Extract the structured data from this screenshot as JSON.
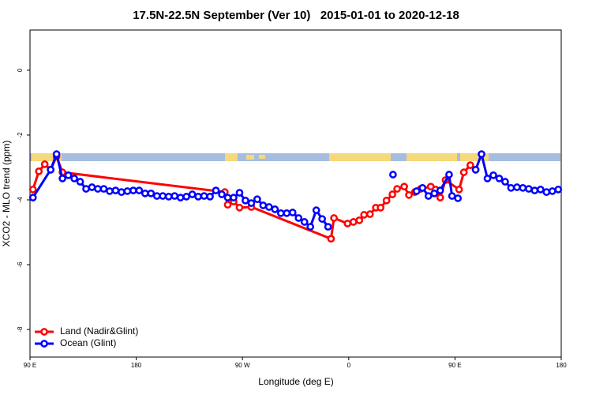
{
  "chart_data": {
    "type": "line",
    "title": "17.5N-22.5N September (Ver 10)   2015-01-01 to 2020-12-18",
    "x_label": "Longitude (deg E)",
    "y_label": "XCO2 - MLO trend (ppm)",
    "xlim": [
      90,
      540
    ],
    "xticks": [
      {
        "value": 90,
        "label": "90 E"
      },
      {
        "value": 180,
        "label": "180"
      },
      {
        "value": 270,
        "label": "90 W"
      },
      {
        "value": 360,
        "label": "0"
      },
      {
        "value": 450,
        "label": "90 E"
      },
      {
        "value": 540,
        "label": "180"
      }
    ],
    "ylim": [
      -8.85,
      1.24
    ],
    "yticks": [
      0,
      -2,
      -4,
      -6,
      -8
    ],
    "legend": "bottom-left",
    "series": [
      {
        "name": "Land (Nadir&Glint)",
        "color": "#ff0000",
        "x": [
          92.5,
          97.5,
          102.5,
          107.5,
          112.5,
          117.5,
          255,
          257.5,
          262.5,
          267.5,
          277.5,
          345,
          347.5,
          359,
          364,
          369,
          373,
          378,
          383,
          387,
          392,
          397,
          401,
          407,
          411,
          416,
          421,
          429.5,
          433.5,
          437.5,
          442,
          453.5,
          457.5,
          463,
          467.5
        ],
        "values": [
          -3.68,
          -3.12,
          -2.9,
          -3.07,
          -2.66,
          -3.15,
          -3.76,
          -4.15,
          -4.05,
          -4.24,
          -4.22,
          -5.2,
          -4.56,
          -4.73,
          -4.68,
          -4.63,
          -4.46,
          -4.44,
          -4.24,
          -4.24,
          -4.02,
          -3.83,
          -3.66,
          -3.59,
          -3.85,
          -3.76,
          -3.66,
          -3.59,
          -3.68,
          -3.93,
          -3.39,
          -3.68,
          -3.15,
          -2.93,
          -3.07
        ]
      },
      {
        "name": "Ocean (Glint)",
        "color": "#0000ff",
        "x": [
          92.5,
          107.5,
          112.5,
          117.5,
          122.5,
          127.5,
          132.5,
          137.5,
          142.5,
          147.5,
          152.5,
          157.5,
          162.5,
          167.5,
          172.5,
          177.5,
          182.5,
          187.5,
          192.5,
          197.5,
          202.5,
          207.5,
          212.5,
          217.5,
          222.5,
          227.5,
          232.5,
          237.5,
          242.5,
          247.5,
          252.5,
          257.5,
          262.5,
          267.5,
          272.5,
          277.5,
          282.5,
          287.5,
          292.5,
          297.5,
          302.5,
          307.5,
          312.5,
          317.5,
          322.5,
          327.5,
          332.5,
          337.5,
          342.5,
          370,
          397.5,
          410,
          417.5,
          422.5,
          427.5,
          432.5,
          437.5,
          445,
          447.5,
          452.5,
          460,
          467.5,
          472.5,
          477.5,
          482.5,
          487.5,
          492.5,
          497.5,
          502.5,
          507.5,
          512.5,
          517.5,
          522.5,
          527.5,
          532.5,
          537.5
        ],
        "values": [
          -3.93,
          -3.07,
          -2.59,
          -3.34,
          -3.24,
          -3.34,
          -3.44,
          -3.66,
          -3.61,
          -3.66,
          -3.66,
          -3.73,
          -3.71,
          -3.76,
          -3.73,
          -3.71,
          -3.71,
          -3.8,
          -3.8,
          -3.88,
          -3.88,
          -3.9,
          -3.88,
          -3.93,
          -3.9,
          -3.83,
          -3.9,
          -3.88,
          -3.9,
          -3.71,
          -3.83,
          -3.93,
          -3.93,
          -3.78,
          -4.02,
          -4.1,
          -3.98,
          -4.17,
          -4.22,
          -4.29,
          -4.41,
          -4.41,
          -4.39,
          -4.56,
          -4.68,
          -4.83,
          -4.32,
          -4.59,
          -4.83,
          null,
          -3.22,
          null,
          -3.73,
          -3.63,
          -3.88,
          -3.8,
          -3.71,
          -3.22,
          -3.88,
          -3.95,
          null,
          -3.07,
          -2.59,
          -3.34,
          -3.24,
          -3.34,
          -3.44,
          -3.63,
          -3.61,
          -3.63,
          -3.66,
          -3.71,
          -3.68,
          -3.76,
          -3.73,
          -3.68
        ]
      }
    ]
  }
}
